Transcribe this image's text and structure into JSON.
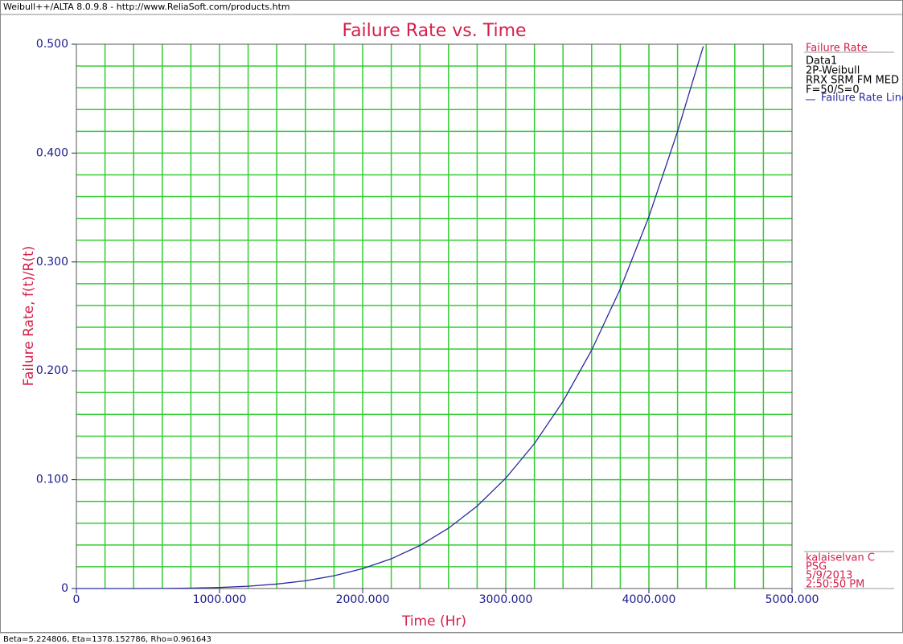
{
  "chart_data": {
    "type": "line",
    "window_title": "Weibull++/ALTA 8.0.9.8 - http://www.ReliaSoft.com/products.htm",
    "title": "Failure Rate vs. Time",
    "xlabel": "Time (Hr)",
    "ylabel": "Failure Rate, f(t)/R(t)",
    "legend_title": "Failure Rate",
    "legend_lines": [
      "Data1",
      "2P-Weibull",
      "RRX SRM FM MED",
      "F=50/S=0"
    ],
    "stamp": [
      "kalaiselvan C",
      "PSG",
      "5/9/2013",
      "2:50:50 PM"
    ],
    "status": "Beta=5.224806, Eta=1378.152786, Rho=0.961643",
    "x": [
      0,
      200,
      400,
      600,
      800,
      1000,
      1200,
      1400,
      1600,
      1800,
      2000,
      2200,
      2400,
      2600,
      2800,
      3000,
      3200,
      3400,
      3600,
      3800,
      4000,
      4200,
      4380
    ],
    "series": [
      {
        "name": "Failure Rate Line",
        "color": "#2a2aa0",
        "values": [
          0,
          1e-06,
          2e-05,
          0.00011,
          0.00038,
          0.00098,
          0.0021,
          0.0041,
          0.0071,
          0.0117,
          0.0183,
          0.0273,
          0.0395,
          0.0554,
          0.0757,
          0.1014,
          0.1331,
          0.1719,
          0.219,
          0.2752,
          0.3416,
          0.4198,
          0.498
        ]
      }
    ],
    "xlim": [
      0,
      5000
    ],
    "ylim": [
      0,
      0.5
    ],
    "xticks": [
      0,
      {
        "value": 1000,
        "label": "1000.000"
      },
      {
        "value": 2000,
        "label": "2000.000"
      },
      {
        "value": 3000,
        "label": "3000.000"
      },
      {
        "value": 4000,
        "label": "4000.000"
      },
      {
        "value": 5000,
        "label": "5000.000"
      }
    ],
    "yticks": [
      0,
      {
        "value": 0.1,
        "label": "0.100"
      },
      {
        "value": 0.2,
        "label": "0.200"
      },
      {
        "value": 0.3,
        "label": "0.300"
      },
      {
        "value": 0.4,
        "label": "0.400"
      },
      {
        "value": 0.5,
        "label": "0.500"
      }
    ],
    "xgrid": [
      200,
      400,
      600,
      800,
      1000,
      1200,
      1400,
      1600,
      1800,
      2000,
      2200,
      2400,
      2600,
      2800,
      3000,
      3200,
      3400,
      3600,
      3800,
      4000,
      4200,
      4400,
      4600,
      4800
    ],
    "ygrid": [
      0.02,
      0.04,
      0.06,
      0.08,
      0.1,
      0.12,
      0.14,
      0.16,
      0.18,
      0.2,
      0.22,
      0.24,
      0.26,
      0.28,
      0.3,
      0.32,
      0.34,
      0.36,
      0.38,
      0.4,
      0.42,
      0.44,
      0.46,
      0.48
    ],
    "grid_color": "#33cc33",
    "grid": true
  }
}
